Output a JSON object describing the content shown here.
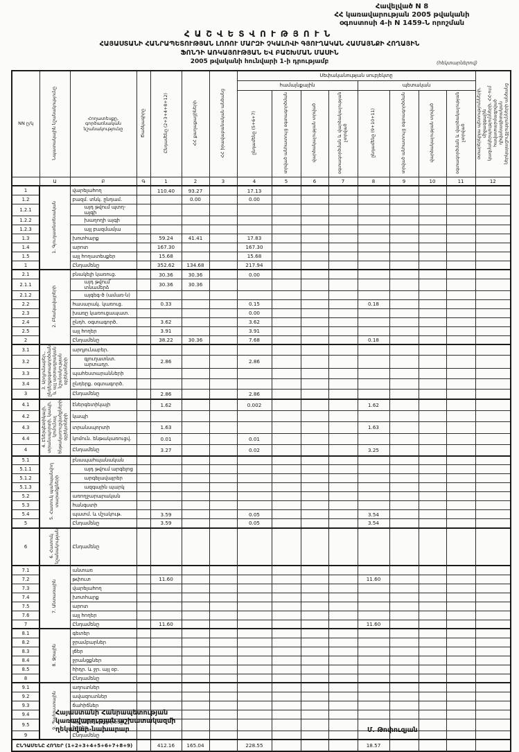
{
  "header": {
    "appendix": "Հավելված N 8",
    "decree_line1": "ՀՀ կառավարության 2005 թվականի",
    "decree_line2": "օգոստոսի 4-ի N 1459-Ն որոշման",
    "title": "ՀԱՇՎԵՏՎՈՒԹՅՈՒՆ",
    "subtitle1": "ՀԱՅԱՍՏԱՆԻ ՀԱՆՐԱՊԵՏՈՒԹՅԱՆ ԼՈՌՈՒ ՄԱՐԶԻ ՉԿԱԼՈՎԻ ԳՅՈՒՂԱԿԱՆ ՀԱՄԱՅՆՔԻ ՀՈՂԱՅԻՆ",
    "subtitle2": "ՖՈՆԴԻ ԱՌԿԱՅՈՒԹՅԱՆ ԵՎ ԲԱՇԽՄԱՆ ՄԱՍԻՆ",
    "subtitle3": "2005 թվականի հունվարի 1-ի դրությամբ",
    "units_note": "(հեկտարներով)"
  },
  "table": {
    "header": {
      "nn": "NN ը/կ",
      "designation": "Նպատակային նշանակությունը",
      "land_type": "Հողատեսքը, գործառնական նշանակությունը",
      "code": "Ծածկագիրը",
      "c1": "Ընդամենը (2+3+4+8+12)",
      "c2": "ՀՀ քաղաքացիների",
      "c3": "ՀՀ իրավաբանական անձանց",
      "ownership": "Սեփականության սուբյեկտը",
      "community": "համայնքային",
      "state": "պետական",
      "c4": "ընդամենը (5+6+7)",
      "c5": "տրված անհատույց օգտագործման",
      "c6": "վարձակալության տրված",
      "c7": "օգտագործման և վարձակալության չտրված",
      "c8": "ընդամենը (9+10+11)",
      "c9": "տրված անհատույց օգտագործման",
      "c10": "վարձակալության տրված",
      "c11": "օգտագործման և վարձակալության չտրված",
      "c12": "օտարերկրյա պետությունների, միջազգային կազմակերպությունների, ՀՀ-ում հավատարմագրված դիվանագիտական ներկայացուցչությունների անձանց"
    },
    "col_letters": [
      "",
      "Ա",
      "Բ",
      "Գ",
      "1",
      "2",
      "3",
      "4",
      "5",
      "6",
      "7",
      "8",
      "9",
      "10",
      "11",
      "12"
    ],
    "sections": [
      {
        "label": "1. Գյուղատնտեսական",
        "rows": [
          {
            "no": "1",
            "label": "վարելահող",
            "v": {
              "c1": "110.40",
              "c2": "93.27",
              "c4": "17.13"
            }
          },
          {
            "no": "1.2",
            "label": "բազմ. տնկ. ընդամ.",
            "v": {
              "c2": "0.00",
              "c4": "0.00"
            }
          },
          {
            "no": "1.2.1",
            "label": "այդ թվում պտղ-այգի",
            "ind": true
          },
          {
            "no": "1.2.2",
            "label": "խաղողի այգի",
            "ind": true
          },
          {
            "no": "1.2.3",
            "label": "այլ բազմամյա",
            "ind": true
          },
          {
            "no": "1.3",
            "label": "խոտհարք",
            "v": {
              "c1": "59.24",
              "c2": "41.41",
              "c4": "17.83"
            }
          },
          {
            "no": "1.4",
            "label": "արոտ",
            "v": {
              "c1": "167.30",
              "c4": "167.30"
            }
          },
          {
            "no": "1.5",
            "label": "այլ հողատեսքեր",
            "v": {
              "c1": "15.68",
              "c4": "15.68"
            }
          },
          {
            "no": "1",
            "label": "Ընդամենը",
            "total": true,
            "v": {
              "c1": "352.62",
              "c2": "134.68",
              "c4": "217.94"
            }
          }
        ]
      },
      {
        "label": "2. Բնակավայրերի",
        "rows": [
          {
            "no": "2.1",
            "label": "բնակելի կառուց.",
            "v": {
              "c1": "30.36",
              "c2": "30.36",
              "c4": "0.00"
            }
          },
          {
            "no": "2.1.1",
            "label": "այդ թվում՝ տնամերձ",
            "ind": true,
            "v": {
              "c1": "30.36",
              "c2": "30.36"
            }
          },
          {
            "no": "2.1.2",
            "label": "այգեգ-ծ (ամառ-ն)",
            "ind": true
          },
          {
            "no": "2.2",
            "label": "հասարակ. կառուց.",
            "v": {
              "c1": "0.33",
              "c4": "0.15",
              "c8": "0.18"
            }
          },
          {
            "no": "2.3",
            "label": "խառը կառուցապատ.",
            "v": {
              "c4": "0.00"
            }
          },
          {
            "no": "2.4",
            "label": "ընդհ. օգտագործ.",
            "v": {
              "c1": "3.62",
              "c4": "3.62"
            }
          },
          {
            "no": "2.5",
            "label": "այլ հողեր",
            "v": {
              "c1": "3.91",
              "c4": "3.91"
            }
          },
          {
            "no": "2",
            "label": "Ընդամենը",
            "total": true,
            "v": {
              "c1": "38.22",
              "c2": "30.36",
              "c4": "7.68",
              "c8": "0.18"
            }
          }
        ]
      },
      {
        "label": "3. Արդյունաբեր., ընդերքօգտագործման և այլ արտադրական նշանակության օբյեկտների",
        "rows": [
          {
            "no": "3.1",
            "label": "արդյունաբեր."
          },
          {
            "no": "3.2",
            "label": "գյուղատնտ. արտադր.",
            "ind": true,
            "v": {
              "c1": "2.86",
              "c4": "2.86"
            }
          },
          {
            "no": "3.3",
            "label": "պահեստարանների"
          },
          {
            "no": "3.4",
            "label": "ընդերք. օգտագործ."
          },
          {
            "no": "3",
            "label": "Ընդամենը",
            "total": true,
            "v": {
              "c1": "2.86",
              "c4": "2.86"
            }
          }
        ]
      },
      {
        "label": "4. Էներգետիկայի, տրանսպորտի, կապի, կոմունալ ենթակառուցվածքների օբյեկտների",
        "rows": [
          {
            "no": "4.1",
            "label": "էներգետիկայի",
            "v": {
              "c1": "1.62",
              "c4": "0.002",
              "c8": "1.62"
            }
          },
          {
            "no": "4.2",
            "label": "կապի"
          },
          {
            "no": "4.3",
            "label": "տրանսպորտի",
            "v": {
              "c1": "1.63",
              "c8": "1.63"
            }
          },
          {
            "no": "4.4",
            "label": "կոմուն. ենթակառուցվ.",
            "v": {
              "c1": "0.01",
              "c4": "0.01"
            }
          },
          {
            "no": "4",
            "label": "Ընդամենը",
            "total": true,
            "v": {
              "c1": "3.27",
              "c4": "0.02",
              "c8": "3.25"
            }
          }
        ]
      },
      {
        "label": "5. Հատուկ պահպանվող տարածքների",
        "rows": [
          {
            "no": "5.1",
            "label": "բնապահպանական"
          },
          {
            "no": "5.1.1",
            "label": "այդ թվում արգելոց",
            "ind": true
          },
          {
            "no": "5.1.2",
            "label": "արգելավայրեր",
            "ind": true
          },
          {
            "no": "5.1.3",
            "label": "ազգային պարկ",
            "ind": true
          },
          {
            "no": "5.2",
            "label": "առողջարարական"
          },
          {
            "no": "5.3",
            "label": "հանգստի"
          },
          {
            "no": "5.4",
            "label": "պատմ. և մշակութ.",
            "v": {
              "c1": "3.59",
              "c4": "0.05",
              "c8": "3.54"
            }
          },
          {
            "no": "5",
            "label": "Ընդամենը",
            "total": true,
            "v": {
              "c1": "3.59",
              "c4": "0.05",
              "c8": "3.54"
            }
          }
        ]
      },
      {
        "label": "6. Հատուկ նշանակության",
        "tall": true,
        "rows": [
          {
            "no": "6",
            "label": "Ընդամենը",
            "total": true
          }
        ]
      },
      {
        "label": "7. Անտառային",
        "rows": [
          {
            "no": "7.1",
            "label": "անտառ"
          },
          {
            "no": "7.2",
            "label": "թփուտ",
            "v": {
              "c1": "11.60",
              "c8": "11.60"
            }
          },
          {
            "no": "7.3",
            "label": "վարելահող"
          },
          {
            "no": "7.4",
            "label": "խոտհարք"
          },
          {
            "no": "7.5",
            "label": "արոտ"
          },
          {
            "no": "7.6",
            "label": "այլ հողեր"
          },
          {
            "no": "7",
            "label": "Ընդամենը",
            "total": true,
            "v": {
              "c1": "11.60",
              "c8": "11.60"
            }
          }
        ]
      },
      {
        "label": "8. Ջրային",
        "rows": [
          {
            "no": "8.1",
            "label": "գետեր"
          },
          {
            "no": "8.2",
            "label": "ջրամբարներ"
          },
          {
            "no": "8.3",
            "label": "լճեր"
          },
          {
            "no": "8.4",
            "label": "ջրանցքներ"
          },
          {
            "no": "8.5",
            "label": "հիդր. և ջր. այլ օբ."
          },
          {
            "no": "8",
            "label": "Ընդամենը",
            "total": true
          }
        ]
      },
      {
        "label": "9. Պահուստային",
        "rows": [
          {
            "no": "9.1",
            "label": "աղուտներ"
          },
          {
            "no": "9.2",
            "label": "ավազուտներ"
          },
          {
            "no": "9.3",
            "label": "ճահիճներ"
          },
          {
            "no": "9.4",
            "label": ""
          },
          {
            "no": "9.5",
            "label": "այլ անօգտագործելի հողեր"
          },
          {
            "no": "9",
            "label": "Ընդամենը",
            "total": true
          }
        ]
      }
    ],
    "grand_total": {
      "label": "ԸՆԴԱՄԵՆԸ ՀՈՂԵՐ (1+2+3+4+5+6+7+8+9)",
      "v": {
        "c1": "412.16",
        "c2": "165.04",
        "c4": "228.55",
        "c8": "18.57"
      }
    }
  },
  "footer": {
    "line1": "Հայաստանի Հանրապետության",
    "line2": "կառավարության աշխատակազմի",
    "line3": "ղեկավար-նախարար",
    "signature": "Մ. Թոփուզյան"
  }
}
